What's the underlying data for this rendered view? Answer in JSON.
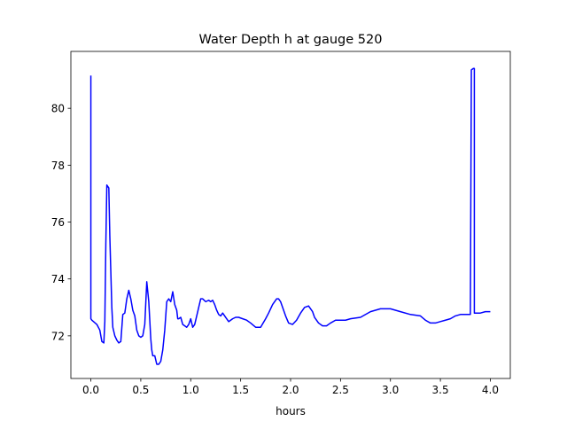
{
  "chart_data": {
    "type": "line",
    "title": "Water Depth h at gauge 520",
    "xlabel": "hours",
    "ylabel": "",
    "xlim": [
      -0.2,
      4.2
    ],
    "ylim": [
      70.5,
      82.0
    ],
    "xticks": [
      0.0,
      0.5,
      1.0,
      1.5,
      2.0,
      2.5,
      3.0,
      3.5,
      4.0
    ],
    "xtick_labels": [
      "0.0",
      "0.5",
      "1.0",
      "1.5",
      "2.0",
      "2.5",
      "3.0",
      "3.5",
      "4.0"
    ],
    "yticks": [
      72,
      74,
      76,
      78,
      80
    ],
    "ytick_labels": [
      "72",
      "74",
      "76",
      "78",
      "80"
    ],
    "grid": false,
    "series": [
      {
        "color": "#0000ff",
        "x": [
          0.0,
          0.0,
          0.01,
          0.06,
          0.09,
          0.11,
          0.13,
          0.14,
          0.15,
          0.16,
          0.18,
          0.19,
          0.21,
          0.22,
          0.24,
          0.26,
          0.28,
          0.3,
          0.32,
          0.34,
          0.36,
          0.38,
          0.4,
          0.42,
          0.44,
          0.46,
          0.48,
          0.5,
          0.52,
          0.54,
          0.56,
          0.58,
          0.6,
          0.61,
          0.62,
          0.64,
          0.66,
          0.68,
          0.7,
          0.72,
          0.74,
          0.76,
          0.78,
          0.8,
          0.82,
          0.84,
          0.86,
          0.87,
          0.88,
          0.9,
          0.92,
          0.94,
          0.96,
          0.98,
          1.0,
          1.02,
          1.04,
          1.06,
          1.08,
          1.1,
          1.12,
          1.15,
          1.18,
          1.2,
          1.22,
          1.24,
          1.26,
          1.28,
          1.3,
          1.32,
          1.35,
          1.38,
          1.4,
          1.42,
          1.45,
          1.48,
          1.52,
          1.56,
          1.6,
          1.65,
          1.7,
          1.75,
          1.78,
          1.82,
          1.86,
          1.88,
          1.9,
          1.92,
          1.95,
          1.98,
          2.02,
          2.06,
          2.1,
          2.14,
          2.18,
          2.22,
          2.24,
          2.28,
          2.32,
          2.36,
          2.4,
          2.45,
          2.5,
          2.55,
          2.6,
          2.7,
          2.8,
          2.9,
          3.0,
          3.05,
          3.1,
          3.2,
          3.3,
          3.35,
          3.4,
          3.45,
          3.5,
          3.55,
          3.6,
          3.65,
          3.7,
          3.75,
          3.79,
          3.8,
          3.81,
          3.81,
          3.83,
          3.84,
          3.84,
          3.85,
          3.9,
          3.95,
          4.0
        ],
        "y": [
          81.15,
          72.6,
          72.55,
          72.4,
          72.2,
          71.8,
          71.75,
          72.5,
          75.2,
          77.3,
          77.2,
          75.5,
          73.0,
          72.3,
          72.0,
          71.85,
          71.75,
          71.8,
          72.75,
          72.8,
          73.3,
          73.6,
          73.3,
          72.9,
          72.7,
          72.2,
          72.0,
          71.95,
          72.0,
          72.4,
          73.9,
          73.2,
          71.9,
          71.5,
          71.3,
          71.3,
          71.0,
          71.0,
          71.1,
          71.5,
          72.2,
          73.2,
          73.3,
          73.2,
          73.55,
          73.1,
          72.9,
          72.6,
          72.6,
          72.65,
          72.4,
          72.35,
          72.3,
          72.4,
          72.6,
          72.3,
          72.4,
          72.7,
          73.0,
          73.3,
          73.3,
          73.2,
          73.25,
          73.2,
          73.25,
          73.1,
          72.9,
          72.75,
          72.7,
          72.8,
          72.65,
          72.5,
          72.55,
          72.6,
          72.65,
          72.65,
          72.6,
          72.55,
          72.45,
          72.3,
          72.3,
          72.6,
          72.8,
          73.1,
          73.3,
          73.3,
          73.2,
          73.0,
          72.7,
          72.45,
          72.4,
          72.55,
          72.8,
          73.0,
          73.05,
          72.85,
          72.65,
          72.45,
          72.35,
          72.35,
          72.45,
          72.55,
          72.55,
          72.55,
          72.6,
          72.65,
          72.85,
          72.95,
          72.95,
          72.9,
          72.85,
          72.75,
          72.7,
          72.55,
          72.45,
          72.45,
          72.5,
          72.55,
          72.6,
          72.7,
          72.75,
          72.75,
          72.75,
          72.75,
          81.35,
          81.35,
          81.4,
          81.4,
          72.8,
          72.8,
          72.8,
          72.85,
          72.85
        ]
      }
    ]
  }
}
